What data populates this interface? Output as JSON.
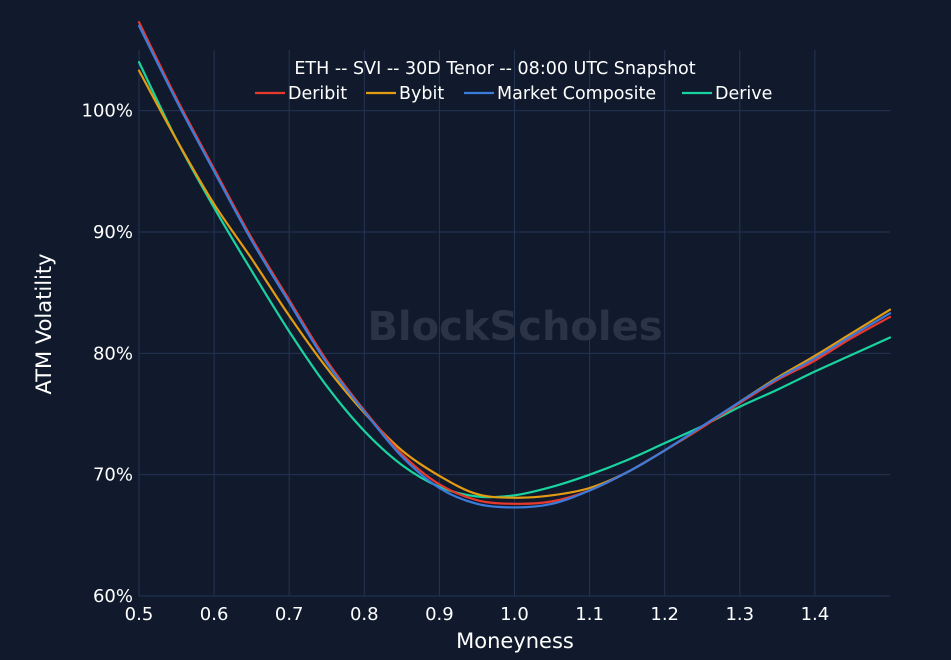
{
  "chart_data": {
    "type": "line",
    "title": "ETH -- SVI -- 30D Tenor -- 08:00 UTC Snapshot",
    "xlabel": "Moneyness",
    "ylabel": "ATM Volatility",
    "xlim": [
      0.5,
      1.5
    ],
    "ylim": [
      60,
      105
    ],
    "x_ticks": [
      0.5,
      0.6,
      0.7,
      0.8,
      0.9,
      1.0,
      1.1,
      1.2,
      1.3,
      1.4
    ],
    "x_tick_labels": [
      "0.5",
      "0.6",
      "0.7",
      "0.8",
      "0.9",
      "1.0",
      "1.1",
      "1.2",
      "1.3",
      "1.4"
    ],
    "y_ticks": [
      60,
      70,
      80,
      90,
      100
    ],
    "y_tick_labels": [
      "60%",
      "70%",
      "80%",
      "90%",
      "100%"
    ],
    "grid": true,
    "legend_position": "top-center",
    "watermark": "BlockScholes",
    "x": [
      0.5,
      0.55,
      0.6,
      0.65,
      0.7,
      0.75,
      0.8,
      0.85,
      0.9,
      0.95,
      1.0,
      1.05,
      1.1,
      1.15,
      1.2,
      1.25,
      1.3,
      1.35,
      1.4,
      1.45,
      1.5
    ],
    "series": [
      {
        "name": "Deribit",
        "color": "#e8382c",
        "values": [
          107.3,
          101.0,
          95.2,
          89.5,
          84.4,
          79.4,
          75.3,
          71.7,
          69.2,
          67.9,
          67.6,
          67.8,
          68.7,
          70.2,
          72.0,
          73.9,
          75.9,
          77.8,
          79.4,
          81.3,
          83.0
        ]
      },
      {
        "name": "Bybit",
        "color": "#e39b12",
        "values": [
          103.3,
          97.6,
          92.3,
          87.8,
          83.1,
          78.8,
          75.1,
          72.0,
          69.9,
          68.4,
          68.1,
          68.3,
          68.9,
          70.2,
          72.0,
          73.9,
          76.0,
          78.0,
          79.8,
          81.7,
          83.6
        ]
      },
      {
        "name": "Market Composite",
        "color": "#3a7bdb",
        "values": [
          107.0,
          100.8,
          95.0,
          89.3,
          84.2,
          79.2,
          75.2,
          71.5,
          68.9,
          67.6,
          67.3,
          67.6,
          68.7,
          70.2,
          72.0,
          74.0,
          76.0,
          77.9,
          79.6,
          81.5,
          83.3
        ]
      },
      {
        "name": "Derive",
        "color": "#19d3a0",
        "values": [
          104.0,
          97.6,
          92.0,
          86.8,
          81.8,
          77.3,
          73.6,
          70.8,
          69.0,
          68.2,
          68.3,
          69.0,
          70.0,
          71.2,
          72.6,
          74.0,
          75.6,
          77.0,
          78.5,
          79.9,
          81.3
        ]
      }
    ]
  }
}
